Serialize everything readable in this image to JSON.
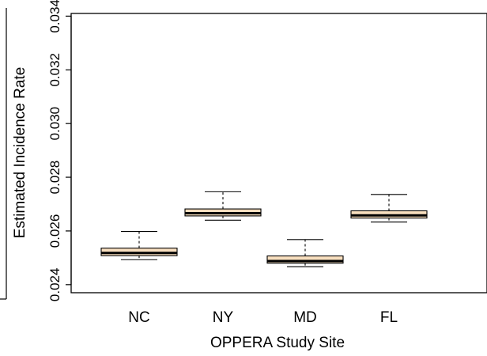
{
  "chart_data": {
    "type": "box",
    "title": "",
    "xlabel": "OPPERA Study Site",
    "ylabel": "Estimated Incidence Rate",
    "ylim": [
      0.0237,
      0.0341
    ],
    "yticks": [
      0.024,
      0.026,
      0.028,
      0.03,
      0.032,
      0.034
    ],
    "ytick_labels": [
      "0.024",
      "0.026",
      "0.028",
      "0.030",
      "0.032",
      "0.034"
    ],
    "grid": false,
    "box_color": "#f8dfbf",
    "categories": [
      "NC",
      "NY",
      "MD",
      "FL"
    ],
    "boxes": [
      {
        "label": "NC",
        "whisker_low": 0.02493,
        "q1": 0.02508,
        "median": 0.02518,
        "q3": 0.02536,
        "whisker_high": 0.02598
      },
      {
        "label": "NY",
        "whisker_low": 0.0264,
        "q1": 0.02656,
        "median": 0.02666,
        "q3": 0.02682,
        "whisker_high": 0.02746
      },
      {
        "label": "MD",
        "whisker_low": 0.02467,
        "q1": 0.0248,
        "median": 0.02488,
        "q3": 0.02507,
        "whisker_high": 0.02568
      },
      {
        "label": "FL",
        "whisker_low": 0.02633,
        "q1": 0.02648,
        "median": 0.02658,
        "q3": 0.02675,
        "whisker_high": 0.02736
      }
    ]
  }
}
